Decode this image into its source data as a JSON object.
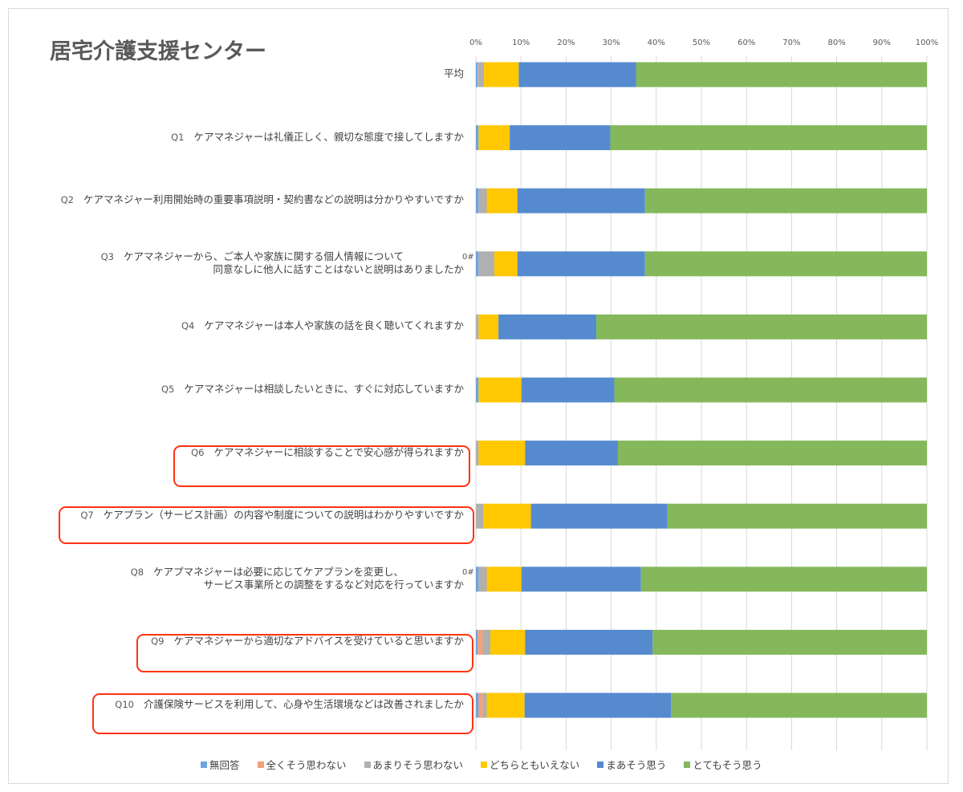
{
  "chart_data": {
    "type": "bar",
    "orientation": "horizontal",
    "stacked": "100%",
    "title": "居宅介護支援センター",
    "xlim": [
      0,
      100
    ],
    "xticks": [
      "0%",
      "10%",
      "20%",
      "30%",
      "40%",
      "50%",
      "60%",
      "70%",
      "80%",
      "90%",
      "100%"
    ],
    "grid": true,
    "legend_position": "bottom",
    "categories": [
      {
        "q": "",
        "lines": [
          "平均"
        ]
      },
      {
        "q": "Q1",
        "lines": [
          "ケアマネジャーは礼儀正しく、親切な態度で接してしますか"
        ]
      },
      {
        "q": "Q2",
        "lines": [
          "ケアマネジャー利用開始時の重要事項説明・契約書などの説明は分かりやすいですか"
        ]
      },
      {
        "q": "Q3",
        "lines": [
          "ケアマネジャーから、ご本人や家族に関する個人情報について",
          "同意なしに他人に話すことはないと説明はありましたか"
        ],
        "note": "0#"
      },
      {
        "q": "Q4",
        "lines": [
          "ケアマネジャーは本人や家族の話を良く聴いてくれますか"
        ]
      },
      {
        "q": "Q5",
        "lines": [
          "ケアマネジャーは相談したいときに、すぐに対応していますか"
        ]
      },
      {
        "q": "Q6",
        "lines": [
          "ケアマネジャーに相談することで安心感が得られますか"
        ],
        "highlighted": true
      },
      {
        "q": "Q7",
        "lines": [
          "ケアプラン（サービス計画）の内容や制度についての説明はわかりやすいですか"
        ],
        "highlighted": true
      },
      {
        "q": "Q8",
        "lines": [
          "ケアプマネジャーは必要に応じてケアプランを変更し、",
          "サービス事業所との調整をするなど対応を行っていますか"
        ],
        "note": "0#"
      },
      {
        "q": "Q9",
        "lines": [
          "ケアマネジャーから適切なアドバイスを受けていると思いますか"
        ],
        "highlighted": true
      },
      {
        "q": "Q10",
        "lines": [
          "介護保険サービスを利用して、心身や生活環境などは改善されましたか"
        ],
        "highlighted": true
      }
    ],
    "series": [
      {
        "name": "無回答",
        "color": "#6fa3dd",
        "values": [
          0.4,
          0.6,
          0.6,
          0.6,
          0.0,
          0.6,
          0.0,
          0.0,
          0.6,
          0.4,
          0.6
        ]
      },
      {
        "name": "全くそう思わない",
        "color": "#f4a07a",
        "values": [
          0.1,
          0.0,
          0.0,
          0.0,
          0.0,
          0.0,
          0.0,
          0.0,
          0.0,
          1.1,
          0.9
        ]
      },
      {
        "name": "あまりそう思わない",
        "color": "#b0b0b0",
        "values": [
          1.3,
          0.0,
          1.8,
          3.5,
          0.6,
          0.0,
          0.6,
          1.6,
          1.8,
          1.7,
          0.9
        ]
      },
      {
        "name": "どちらともいえない",
        "color": "#ffc800",
        "values": [
          7.7,
          6.9,
          6.8,
          5.1,
          4.4,
          9.5,
          10.3,
          10.6,
          7.7,
          7.7,
          8.4
        ]
      },
      {
        "name": "まあそう思う",
        "color": "#568acf",
        "values": [
          26.0,
          22.3,
          28.3,
          28.3,
          21.7,
          20.6,
          20.6,
          30.3,
          26.5,
          28.3,
          32.5
        ]
      },
      {
        "name": "とてもそう思う",
        "color": "#84b85b",
        "values": [
          64.5,
          70.2,
          62.5,
          62.5,
          73.3,
          69.3,
          68.5,
          57.5,
          63.4,
          60.8,
          56.7
        ]
      }
    ]
  }
}
